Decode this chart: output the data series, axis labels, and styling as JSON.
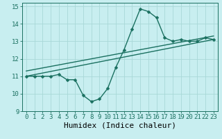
{
  "xlabel": "Humidex (Indice chaleur)",
  "bg_color": "#c8eef0",
  "line_color": "#1a7060",
  "grid_color": "#a8d8d8",
  "xlim": [
    -0.5,
    23.5
  ],
  "ylim": [
    9,
    15.2
  ],
  "yticks": [
    9,
    10,
    11,
    12,
    13,
    14,
    15
  ],
  "xticks": [
    0,
    1,
    2,
    3,
    4,
    5,
    6,
    7,
    8,
    9,
    10,
    11,
    12,
    13,
    14,
    15,
    16,
    17,
    18,
    19,
    20,
    21,
    22,
    23
  ],
  "curve1_x": [
    0,
    1,
    2,
    3,
    4,
    5,
    6,
    7,
    8,
    9,
    10,
    11,
    12,
    13,
    14,
    15,
    16,
    17,
    18,
    19,
    20,
    21,
    22,
    23
  ],
  "curve1_y": [
    11.0,
    11.0,
    11.0,
    11.0,
    11.1,
    10.8,
    10.8,
    9.9,
    9.55,
    9.7,
    10.3,
    11.5,
    12.5,
    13.7,
    14.85,
    14.7,
    14.35,
    13.2,
    13.0,
    13.1,
    13.0,
    13.0,
    13.2,
    13.1
  ],
  "line1_x": [
    0,
    23
  ],
  "line1_y": [
    11.0,
    13.1
  ],
  "line2_x": [
    0,
    23
  ],
  "line2_y": [
    11.3,
    13.3
  ],
  "markersize": 2.5,
  "linewidth": 1.0,
  "xlabel_fontsize": 8,
  "tick_fontsize": 6.5
}
